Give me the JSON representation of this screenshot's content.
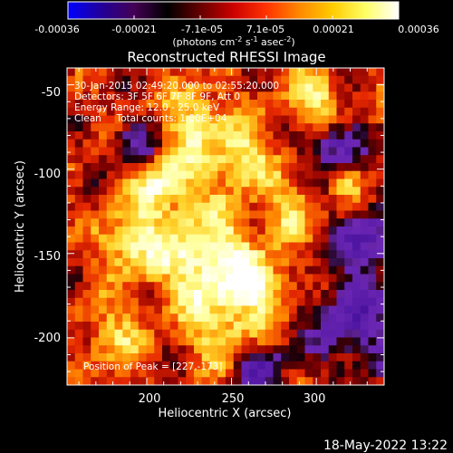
{
  "colorbar": {
    "tick_labels": [
      "-0.00036",
      "-0.00021",
      "-7.1e-05",
      "7.1e-05",
      "0.00021",
      "0.00036"
    ],
    "units_prefix": "(photons cm",
    "units_exp1": "-2",
    "units_mid": " s",
    "units_exp2": "-1",
    "units_mid2": " asec",
    "units_exp3": "-2",
    "units_suffix": ")",
    "colors": [
      "#0000ff",
      "#220099",
      "#440055",
      "#000000",
      "#660000",
      "#cc0000",
      "#ff3300",
      "#ff8800",
      "#ffcc00",
      "#ffff66",
      "#ffffff"
    ]
  },
  "annotations": {
    "time_range": "30-Jan-2015 02:49:20.000 to 02:55:20.000",
    "detectors": "Detectors: 3F 5F 6F 7F 8F 9F, Att 0",
    "energy": "Energy Range: 12.0 - 25.0 keV",
    "clean": "Clean     Total counts: 1.00E+04",
    "peak": "Position of Peak = [227,-173]"
  },
  "footer": {
    "date": "18-May-2022 13:22"
  },
  "chart_data": {
    "type": "heatmap",
    "title": "Reconstructed RHESSI Image",
    "xlabel": "Heliocentric X (arcsec)",
    "ylabel": "Heliocentric Y (arcsec)",
    "xlim": [
      153,
      340
    ],
    "ylim": [
      -228,
      -40
    ],
    "xticks": [
      200,
      250,
      300
    ],
    "yticks": [
      -50,
      -100,
      -150,
      -200
    ],
    "peak": [
      227,
      -173
    ],
    "colorbar_range": [
      -0.00036,
      0.00036
    ],
    "grid_cols": 40,
    "grid_rows": 40
  }
}
